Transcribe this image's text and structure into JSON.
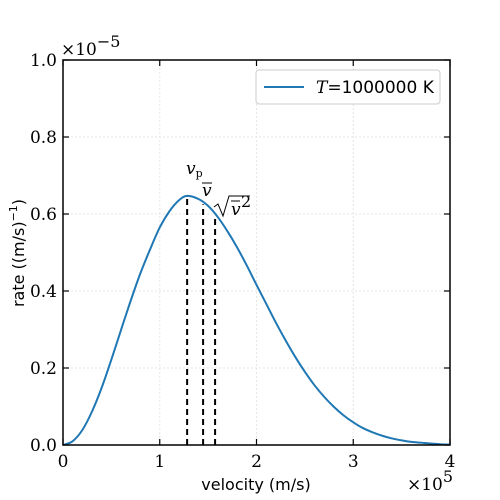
{
  "chart_data": {
    "type": "line",
    "xlabel": "velocity (m/s)",
    "ylabel": "rate ((m/s)",
    "ylabel_suffix": ")",
    "ylabel_exponent": "−1",
    "x_multiplier_label": "×10",
    "x_multiplier_exponent": "5",
    "y_multiplier_label": "×10",
    "y_multiplier_exponent": "−5",
    "xlim": [
      0,
      400000
    ],
    "ylim": [
      0,
      1e-05
    ],
    "xticks": [
      0,
      100000,
      200000,
      300000,
      400000
    ],
    "xtick_labels": [
      "0",
      "1",
      "2",
      "3",
      "4"
    ],
    "yticks": [
      0,
      2e-06,
      4e-06,
      6e-06,
      8e-06,
      1e-05
    ],
    "ytick_labels": [
      "0.0",
      "0.2",
      "0.4",
      "0.6",
      "0.8",
      "1.0"
    ],
    "grid": true,
    "legend_position": "upper-right",
    "legend": {
      "label_var": "T",
      "label_rest": "=1000000 K"
    },
    "series": [
      {
        "name": "T=1000000 K",
        "color": "#1f77b4",
        "x": [
          0,
          10000,
          20000,
          30000,
          40000,
          50000,
          60000,
          70000,
          80000,
          90000,
          100000,
          110000,
          120000,
          128300,
          140000,
          150000,
          160000,
          170000,
          180000,
          190000,
          200000,
          210000,
          220000,
          230000,
          240000,
          250000,
          260000,
          270000,
          280000,
          290000,
          300000,
          310000,
          320000,
          330000,
          340000,
          350000,
          360000,
          370000,
          380000,
          390000,
          400000
        ],
        "y": [
          0,
          1e-07,
          3.9e-07,
          8.7e-07,
          1.49e-06,
          2.22e-06,
          2.99e-06,
          3.75e-06,
          4.46e-06,
          5.08e-06,
          5.65e-06,
          6.07e-06,
          6.36e-06,
          6.47e-06,
          6.39e-06,
          6.21e-06,
          5.92e-06,
          5.55e-06,
          5.13e-06,
          4.66e-06,
          4.16e-06,
          3.67e-06,
          3.18e-06,
          2.72e-06,
          2.29e-06,
          1.9e-06,
          1.55e-06,
          1.25e-06,
          9.9e-07,
          7.7e-07,
          5.9e-07,
          4.4e-07,
          3.3e-07,
          2.4e-07,
          1.7e-07,
          1.2e-07,
          8e-08,
          6e-08,
          4e-08,
          2e-08,
          1e-08
        ]
      }
    ],
    "vlines": [
      {
        "id": "vp",
        "x": 128300,
        "y_top": 6.47e-06
      },
      {
        "id": "vmean",
        "x": 144800,
        "y_top": 6.25e-06
      },
      {
        "id": "vrms",
        "x": 157200,
        "y_top": 5.92e-06
      }
    ],
    "annotations": {
      "vp_main": "v",
      "vp_sub": "p",
      "vmean": "v",
      "vrms": "v",
      "vrms_exp": "2"
    }
  }
}
